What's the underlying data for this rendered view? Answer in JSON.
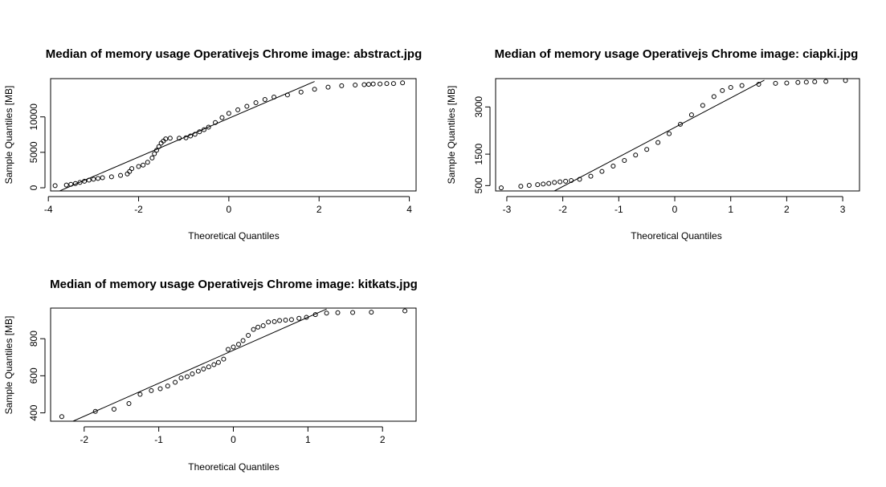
{
  "chart_data": [
    {
      "type": "scatter",
      "title": "Median of memory usage Operativejs Chrome image:  abstract.jpg",
      "xlabel": "Theoretical Quantiles",
      "ylabel": "Sample Quantiles [MB]",
      "xlim": [
        -3.95,
        4.15
      ],
      "ylim": [
        -450,
        15400
      ],
      "xticks": [
        -4,
        -2,
        0,
        2,
        4
      ],
      "xtick_labels": [
        "-4",
        "-2",
        "0",
        "2",
        "4"
      ],
      "yticks": [
        0,
        5000,
        10000
      ],
      "ytick_labels": [
        "0",
        "5000",
        "10000"
      ],
      "qqline": {
        "x": [
          -3.75,
          1.9
        ],
        "y": [
          -450,
          15000
        ]
      },
      "curve": [
        [
          -3.85,
          300
        ],
        [
          -3.6,
          380
        ],
        [
          -3.5,
          480
        ],
        [
          -3.4,
          600
        ],
        [
          -3.3,
          750
        ],
        [
          -3.2,
          920
        ],
        [
          -3.1,
          1080
        ],
        [
          -3.0,
          1200
        ],
        [
          -2.9,
          1320
        ],
        [
          -2.8,
          1420
        ],
        [
          -2.6,
          1550
        ],
        [
          -2.4,
          1750
        ],
        [
          -2.25,
          1950
        ],
        [
          -2.2,
          2300
        ],
        [
          -2.15,
          2700
        ],
        [
          -2.0,
          3000
        ],
        [
          -1.9,
          3200
        ],
        [
          -1.8,
          3600
        ],
        [
          -1.7,
          4200
        ],
        [
          -1.65,
          4800
        ],
        [
          -1.6,
          5300
        ],
        [
          -1.55,
          5800
        ],
        [
          -1.5,
          6300
        ],
        [
          -1.45,
          6600
        ],
        [
          -1.4,
          6900
        ],
        [
          -1.3,
          7000
        ],
        [
          -1.1,
          7000
        ],
        [
          -0.95,
          7050
        ],
        [
          -0.85,
          7300
        ],
        [
          -0.75,
          7550
        ],
        [
          -0.65,
          7900
        ],
        [
          -0.55,
          8200
        ],
        [
          -0.45,
          8550
        ],
        [
          -0.3,
          9200
        ],
        [
          -0.15,
          9900
        ],
        [
          0.0,
          10500
        ],
        [
          0.2,
          11000
        ],
        [
          0.4,
          11500
        ],
        [
          0.6,
          12000
        ],
        [
          0.8,
          12450
        ],
        [
          1.0,
          12800
        ],
        [
          1.3,
          13100
        ],
        [
          1.6,
          13500
        ],
        [
          1.9,
          13900
        ],
        [
          2.2,
          14200
        ],
        [
          2.5,
          14400
        ],
        [
          2.8,
          14500
        ],
        [
          3.0,
          14550
        ],
        [
          3.1,
          14600
        ],
        [
          3.2,
          14650
        ],
        [
          3.35,
          14650
        ],
        [
          3.5,
          14700
        ],
        [
          3.65,
          14700
        ],
        [
          3.85,
          14800
        ]
      ]
    },
    {
      "type": "scatter",
      "title": "Median of memory usage Operativejs Chrome image:  ciapki.jpg",
      "xlabel": "Theoretical Quantiles",
      "ylabel": "Sample Quantiles [MB]",
      "xlim": [
        -3.2,
        3.3
      ],
      "ylim": [
        330,
        3900
      ],
      "xticks": [
        -3,
        -2,
        -1,
        0,
        1,
        2,
        3
      ],
      "xtick_labels": [
        "-3",
        "-2",
        "-1",
        "0",
        "1",
        "2",
        "3"
      ],
      "yticks": [
        500,
        1500,
        3000
      ],
      "ytick_labels": [
        "500",
        "1500",
        "3000"
      ],
      "qqline": {
        "x": [
          -2.15,
          1.6
        ],
        "y": [
          330,
          3850
        ]
      },
      "curve": [
        [
          -3.1,
          430
        ],
        [
          -2.75,
          480
        ],
        [
          -2.6,
          510
        ],
        [
          -2.45,
          530
        ],
        [
          -2.35,
          550
        ],
        [
          -2.25,
          570
        ],
        [
          -2.15,
          600
        ],
        [
          -2.05,
          620
        ],
        [
          -1.95,
          640
        ],
        [
          -1.85,
          660
        ],
        [
          -1.7,
          700
        ],
        [
          -1.5,
          800
        ],
        [
          -1.3,
          950
        ],
        [
          -1.1,
          1120
        ],
        [
          -0.9,
          1300
        ],
        [
          -0.7,
          1470
        ],
        [
          -0.5,
          1650
        ],
        [
          -0.3,
          1870
        ],
        [
          -0.1,
          2150
        ],
        [
          0.1,
          2450
        ],
        [
          0.3,
          2750
        ],
        [
          0.5,
          3050
        ],
        [
          0.7,
          3330
        ],
        [
          0.85,
          3520
        ],
        [
          1.0,
          3620
        ],
        [
          1.2,
          3680
        ],
        [
          1.5,
          3720
        ],
        [
          1.8,
          3750
        ],
        [
          2.0,
          3760
        ],
        [
          2.2,
          3780
        ],
        [
          2.35,
          3790
        ],
        [
          2.5,
          3800
        ],
        [
          2.7,
          3810
        ],
        [
          3.05,
          3840
        ]
      ]
    },
    {
      "type": "scatter",
      "title": "Median of memory usage Operativejs Chrome image:  kitkats.jpg",
      "xlabel": "Theoretical Quantiles",
      "ylabel": "Sample Quantiles [MB]",
      "xlim": [
        -2.45,
        2.45
      ],
      "ylim": [
        355,
        965
      ],
      "xticks": [
        -2,
        -1,
        0,
        1,
        2
      ],
      "xtick_labels": [
        "-2",
        "-1",
        "0",
        "1",
        "2"
      ],
      "yticks": [
        400,
        600,
        800
      ],
      "ytick_labels": [
        "400",
        "600",
        "800"
      ],
      "qqline": {
        "x": [
          -2.15,
          1.25
        ],
        "y": [
          355,
          960
        ]
      },
      "curve": [
        [
          -2.3,
          380
        ],
        [
          -1.85,
          408
        ],
        [
          -1.6,
          420
        ],
        [
          -1.4,
          450
        ],
        [
          -1.25,
          500
        ],
        [
          -1.1,
          520
        ],
        [
          -0.98,
          530
        ],
        [
          -0.88,
          545
        ],
        [
          -0.78,
          565
        ],
        [
          -0.7,
          588
        ],
        [
          -0.62,
          595
        ],
        [
          -0.55,
          610
        ],
        [
          -0.47,
          625
        ],
        [
          -0.4,
          637
        ],
        [
          -0.33,
          648
        ],
        [
          -0.26,
          660
        ],
        [
          -0.2,
          672
        ],
        [
          -0.13,
          690
        ],
        [
          -0.07,
          742
        ],
        [
          0.0,
          755
        ],
        [
          0.07,
          770
        ],
        [
          0.13,
          790
        ],
        [
          0.2,
          818
        ],
        [
          0.27,
          850
        ],
        [
          0.33,
          862
        ],
        [
          0.4,
          870
        ],
        [
          0.47,
          890
        ],
        [
          0.55,
          892
        ],
        [
          0.62,
          898
        ],
        [
          0.7,
          900
        ],
        [
          0.78,
          903
        ],
        [
          0.88,
          910
        ],
        [
          0.98,
          915
        ],
        [
          1.1,
          930
        ],
        [
          1.25,
          938
        ],
        [
          1.4,
          940
        ],
        [
          1.6,
          941
        ],
        [
          1.85,
          943
        ],
        [
          2.3,
          950
        ]
      ]
    }
  ]
}
